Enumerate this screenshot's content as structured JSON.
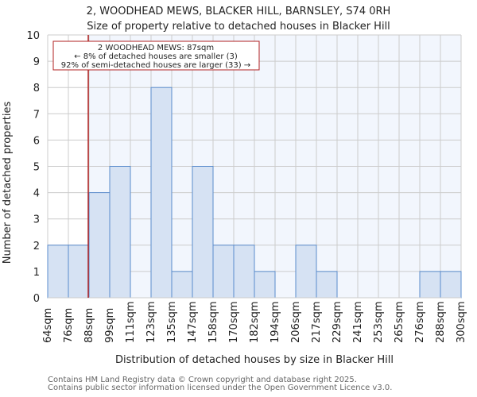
{
  "chart_data": {
    "type": "bar",
    "title": "2, WOODHEAD MEWS, BLACKER HILL, BARNSLEY, S74 0RH",
    "subtitle": "Size of property relative to detached houses in Blacker Hill",
    "xlabel": "Distribution of detached houses by size in Blacker Hill",
    "ylabel": "Number of detached properties",
    "categories": [
      "64sqm",
      "76sqm",
      "88sqm",
      "99sqm",
      "111sqm",
      "123sqm",
      "135sqm",
      "147sqm",
      "158sqm",
      "170sqm",
      "182sqm",
      "194sqm",
      "206sqm",
      "217sqm",
      "229sqm",
      "241sqm",
      "253sqm",
      "265sqm",
      "276sqm",
      "288sqm",
      "300sqm"
    ],
    "values": [
      2,
      2,
      4,
      5,
      0,
      8,
      1,
      5,
      2,
      2,
      1,
      0,
      2,
      1,
      0,
      0,
      0,
      0,
      1,
      1
    ],
    "ylim": [
      0,
      10
    ],
    "yticks": [
      0,
      1,
      2,
      3,
      4,
      5,
      6,
      7,
      8,
      9,
      10
    ],
    "grid": true,
    "marker": {
      "value_sqm": 87,
      "color": "#b22222"
    },
    "annotation": {
      "line1": "2 WOODHEAD MEWS: 87sqm",
      "line2": "← 8% of detached houses are smaller (3)",
      "line3": "92% of semi-detached houses are larger (33) →"
    },
    "colors": {
      "bar_fill": "#d6e2f3",
      "bar_edge": "#5b8ccc",
      "highlight_bg": "#f2f6fd",
      "grid": "#cccccc"
    }
  },
  "footer": {
    "line1": "Contains HM Land Registry data © Crown copyright and database right 2025.",
    "line2": "Contains public sector information licensed under the Open Government Licence v3.0."
  }
}
